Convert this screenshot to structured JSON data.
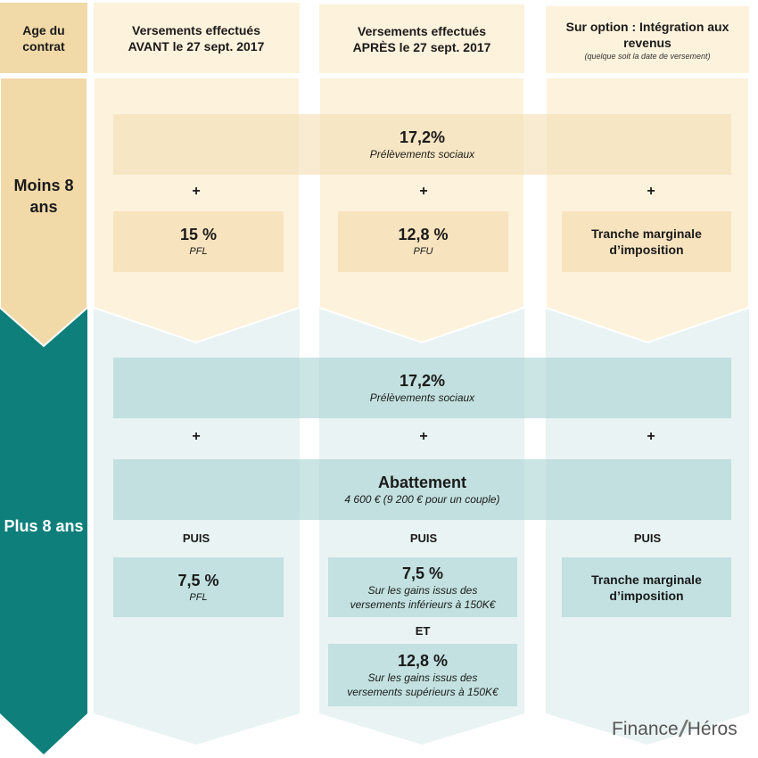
{
  "header": {
    "age_label": "Age du contrat",
    "col1": "Versements effectués AVANT le 27 sept. 2017",
    "col2": "Versements effectués APRÈS le 27 sept. 2017",
    "col3": "Sur option : Intégration aux revenus",
    "col3_note": "(quelque soit la date de versement)"
  },
  "rows": {
    "moins": {
      "label": "Moins 8 ans",
      "social_rate": "17,2%",
      "social_label": "Prélèvements sociaux",
      "plus": "+",
      "col1_rate": "15 %",
      "col1_label": "PFL",
      "col2_rate": "12,8 %",
      "col2_label": "PFU",
      "col3_label": "Tranche marginale d’imposition"
    },
    "plus8": {
      "label": "Plus 8 ans",
      "social_rate": "17,2%",
      "social_label": "Prélèvements sociaux",
      "plus": "+",
      "abattement_title": "Abattement",
      "abattement_label": "4 600 € (9 200 € pour un couple)",
      "puis": "PUIS",
      "col1_rate": "7,5 %",
      "col1_label": "PFL",
      "col2_rate_a": "7,5 %",
      "col2_label_a": "Sur les gains issus des versements inférieurs à 150K€",
      "et": "ET",
      "col2_rate_b": "12,8 %",
      "col2_label_b": "Sur les gains issus des versements supérieurs à 150K€",
      "col3_label": "Tranche marginale d’imposition"
    }
  },
  "logo": {
    "left": "Finance",
    "right": "Héros"
  },
  "colors": {
    "beige_light": "#fdf2dc",
    "beige_dark": "#f2d9a8",
    "teal": "#0e7f7b",
    "teal_light": "#e9f3f3",
    "teal_box": "#c2e1e0",
    "beige_box": "#f8e3bf"
  }
}
